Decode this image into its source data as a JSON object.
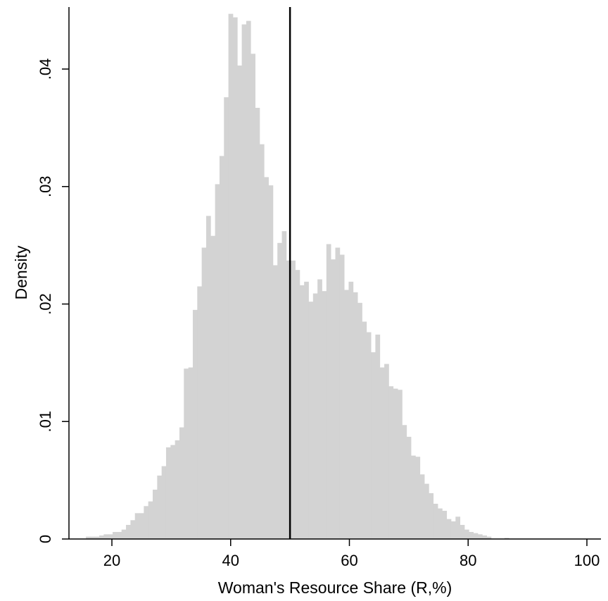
{
  "chart_data": {
    "type": "bar",
    "subtype": "histogram",
    "xlabel": "Woman's Resource Share (R,%)",
    "ylabel": "Density",
    "xlim": [
      13,
      101
    ],
    "ylim": [
      0,
      0.0455
    ],
    "xticks": [
      20,
      40,
      60,
      80,
      100
    ],
    "xtick_labels": [
      "20",
      "40",
      "60",
      "80",
      "100"
    ],
    "yticks": [
      0,
      0.01,
      0.02,
      0.03,
      0.04
    ],
    "ytick_labels": [
      "0",
      ".01",
      ".02",
      ".03",
      ".04"
    ],
    "grid": false,
    "bin_width": 0.75,
    "bar_color": "#d3d3d3",
    "reference_line": {
      "x": 50,
      "color": "#000000"
    },
    "bins": [
      {
        "x": 16.0,
        "y": 0.0002
      },
      {
        "x": 16.75,
        "y": 0.0002
      },
      {
        "x": 17.5,
        "y": 0.0002
      },
      {
        "x": 18.25,
        "y": 0.0003
      },
      {
        "x": 19.0,
        "y": 0.0004
      },
      {
        "x": 19.75,
        "y": 0.0004
      },
      {
        "x": 20.5,
        "y": 0.0006
      },
      {
        "x": 21.25,
        "y": 0.0006
      },
      {
        "x": 22.0,
        "y": 0.0008
      },
      {
        "x": 22.75,
        "y": 0.0012
      },
      {
        "x": 23.5,
        "y": 0.0016
      },
      {
        "x": 24.25,
        "y": 0.0022
      },
      {
        "x": 25.0,
        "y": 0.0022
      },
      {
        "x": 25.75,
        "y": 0.0028
      },
      {
        "x": 26.5,
        "y": 0.0032
      },
      {
        "x": 27.25,
        "y": 0.0042
      },
      {
        "x": 28.0,
        "y": 0.0054
      },
      {
        "x": 28.75,
        "y": 0.0062
      },
      {
        "x": 29.5,
        "y": 0.0078
      },
      {
        "x": 30.25,
        "y": 0.008
      },
      {
        "x": 31.0,
        "y": 0.0084
      },
      {
        "x": 31.75,
        "y": 0.0095
      },
      {
        "x": 32.5,
        "y": 0.0145
      },
      {
        "x": 33.25,
        "y": 0.0146
      },
      {
        "x": 34.0,
        "y": 0.0195
      },
      {
        "x": 34.75,
        "y": 0.0215
      },
      {
        "x": 35.5,
        "y": 0.0248
      },
      {
        "x": 36.25,
        "y": 0.0275
      },
      {
        "x": 37.0,
        "y": 0.0258
      },
      {
        "x": 37.75,
        "y": 0.0302
      },
      {
        "x": 38.5,
        "y": 0.0326
      },
      {
        "x": 39.25,
        "y": 0.0376
      },
      {
        "x": 40.0,
        "y": 0.0447
      },
      {
        "x": 40.75,
        "y": 0.0444
      },
      {
        "x": 41.5,
        "y": 0.0403
      },
      {
        "x": 42.25,
        "y": 0.0438
      },
      {
        "x": 43.0,
        "y": 0.0441
      },
      {
        "x": 43.75,
        "y": 0.0413
      },
      {
        "x": 44.5,
        "y": 0.0367
      },
      {
        "x": 45.25,
        "y": 0.0336
      },
      {
        "x": 46.0,
        "y": 0.0308
      },
      {
        "x": 46.75,
        "y": 0.0301
      },
      {
        "x": 47.5,
        "y": 0.0233
      },
      {
        "x": 48.25,
        "y": 0.0252
      },
      {
        "x": 49.0,
        "y": 0.0262
      },
      {
        "x": 49.75,
        "y": 0.0237
      },
      {
        "x": 50.5,
        "y": 0.0237
      },
      {
        "x": 51.25,
        "y": 0.0229
      },
      {
        "x": 52.0,
        "y": 0.0216
      },
      {
        "x": 52.75,
        "y": 0.0219
      },
      {
        "x": 53.5,
        "y": 0.0202
      },
      {
        "x": 54.25,
        "y": 0.0209
      },
      {
        "x": 55.0,
        "y": 0.0221
      },
      {
        "x": 55.75,
        "y": 0.0211
      },
      {
        "x": 56.5,
        "y": 0.0251
      },
      {
        "x": 57.25,
        "y": 0.0238
      },
      {
        "x": 58.0,
        "y": 0.0248
      },
      {
        "x": 58.75,
        "y": 0.0242
      },
      {
        "x": 59.5,
        "y": 0.0212
      },
      {
        "x": 60.25,
        "y": 0.0219
      },
      {
        "x": 61.0,
        "y": 0.021
      },
      {
        "x": 61.75,
        "y": 0.0201
      },
      {
        "x": 62.5,
        "y": 0.0185
      },
      {
        "x": 63.25,
        "y": 0.0176
      },
      {
        "x": 64.0,
        "y": 0.0159
      },
      {
        "x": 64.75,
        "y": 0.0174
      },
      {
        "x": 65.5,
        "y": 0.0146
      },
      {
        "x": 66.25,
        "y": 0.0149
      },
      {
        "x": 67.0,
        "y": 0.013
      },
      {
        "x": 67.75,
        "y": 0.0128
      },
      {
        "x": 68.5,
        "y": 0.0127
      },
      {
        "x": 69.25,
        "y": 0.0097
      },
      {
        "x": 70.0,
        "y": 0.0087
      },
      {
        "x": 70.75,
        "y": 0.0071
      },
      {
        "x": 71.5,
        "y": 0.007
      },
      {
        "x": 72.25,
        "y": 0.0055
      },
      {
        "x": 73.0,
        "y": 0.0047
      },
      {
        "x": 73.75,
        "y": 0.0039
      },
      {
        "x": 74.5,
        "y": 0.003
      },
      {
        "x": 75.25,
        "y": 0.0026
      },
      {
        "x": 76.0,
        "y": 0.0024
      },
      {
        "x": 76.75,
        "y": 0.0017
      },
      {
        "x": 77.5,
        "y": 0.0015
      },
      {
        "x": 78.25,
        "y": 0.0019
      },
      {
        "x": 79.0,
        "y": 0.0012
      },
      {
        "x": 79.75,
        "y": 0.0008
      },
      {
        "x": 80.5,
        "y": 0.0006
      },
      {
        "x": 81.25,
        "y": 0.0005
      },
      {
        "x": 82.0,
        "y": 0.0004
      },
      {
        "x": 82.75,
        "y": 0.0003
      },
      {
        "x": 83.5,
        "y": 0.0002
      },
      {
        "x": 86.5,
        "y": 0.0001
      }
    ]
  }
}
